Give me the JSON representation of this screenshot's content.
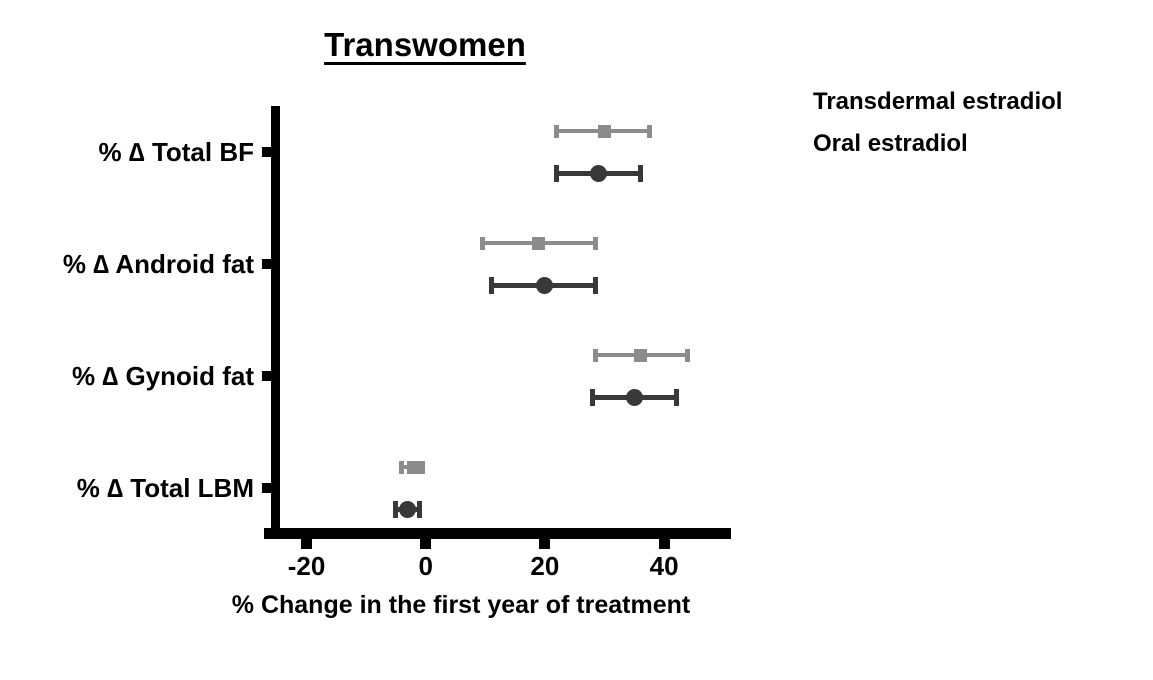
{
  "chart_data": {
    "type": "scatter",
    "subtype": "horizontal-dot-plot-with-error-bars",
    "title": "Transwomen",
    "xlabel": "% Change in the first year of treatment",
    "ylabel": "",
    "categories": [
      "% ∆ Total BF",
      "% ∆ Android fat",
      "% ∆ Gynoid fat",
      "% ∆ Total LBM"
    ],
    "xticks": [
      -20,
      0,
      20,
      40
    ],
    "xlim": [
      -26,
      51
    ],
    "grid": false,
    "legend_position": "top-right",
    "units": "%",
    "series": [
      {
        "name": "Transdermal estradiol",
        "marker": "circle",
        "color": "#383838",
        "values": [
          29,
          20,
          35,
          -3
        ],
        "ci_low": [
          22,
          11,
          28,
          -5
        ],
        "ci_high": [
          36,
          28.5,
          42,
          -1
        ]
      },
      {
        "name": "Oral estradiol",
        "marker": "square",
        "color": "#8c8c8c",
        "values": [
          30,
          19,
          36,
          -2
        ],
        "ci_low": [
          22,
          9.5,
          28.5,
          -4
        ],
        "ci_high": [
          37.5,
          28.5,
          44,
          -0.5
        ]
      }
    ]
  }
}
